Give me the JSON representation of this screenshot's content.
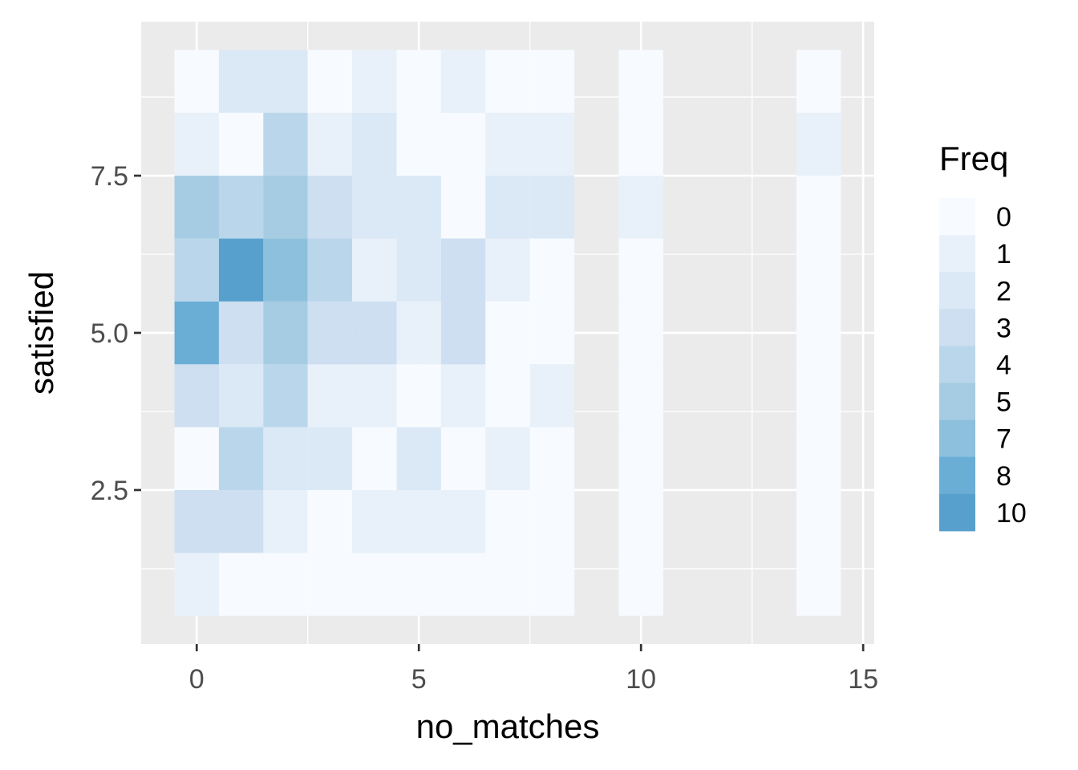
{
  "chart_data": {
    "type": "heatmap",
    "title": "",
    "xlabel": "no_matches",
    "ylabel": "satisfied",
    "x_ticks": [
      0,
      5,
      10,
      15
    ],
    "x_tick_labels": [
      "0",
      "5",
      "10",
      "15"
    ],
    "y_ticks": [
      2.5,
      5.0,
      7.5
    ],
    "y_tick_labels": [
      "2.5",
      "5.0",
      "7.5"
    ],
    "xlim": [
      -1.25,
      15.25
    ],
    "ylim": [
      0.05,
      9.95
    ],
    "grid": true,
    "panel_background": "#ebebeb",
    "legend": {
      "title": "Freq",
      "position": "right",
      "levels": [
        "0",
        "1",
        "2",
        "3",
        "4",
        "5",
        "7",
        "8",
        "10"
      ],
      "colors": [
        "#f7fbff",
        "#e8f1fa",
        "#dbe9f6",
        "#cddff1",
        "#bad6eb",
        "#a5cce2",
        "#8dc0dd",
        "#6aaed6",
        "#57a0ce"
      ]
    },
    "cells": [
      {
        "x": 0,
        "y": 1,
        "freq": 1
      },
      {
        "x": 1,
        "y": 1,
        "freq": 0
      },
      {
        "x": 2,
        "y": 1,
        "freq": 0
      },
      {
        "x": 3,
        "y": 1,
        "freq": 0
      },
      {
        "x": 4,
        "y": 1,
        "freq": 0
      },
      {
        "x": 5,
        "y": 1,
        "freq": 0
      },
      {
        "x": 6,
        "y": 1,
        "freq": 0
      },
      {
        "x": 7,
        "y": 1,
        "freq": 0
      },
      {
        "x": 8,
        "y": 1,
        "freq": 0
      },
      {
        "x": 10,
        "y": 1,
        "freq": 0
      },
      {
        "x": 14,
        "y": 1,
        "freq": 0
      },
      {
        "x": 0,
        "y": 2,
        "freq": 3
      },
      {
        "x": 1,
        "y": 2,
        "freq": 3
      },
      {
        "x": 2,
        "y": 2,
        "freq": 1
      },
      {
        "x": 3,
        "y": 2,
        "freq": 0
      },
      {
        "x": 4,
        "y": 2,
        "freq": 1
      },
      {
        "x": 5,
        "y": 2,
        "freq": 1
      },
      {
        "x": 6,
        "y": 2,
        "freq": 1
      },
      {
        "x": 7,
        "y": 2,
        "freq": 0
      },
      {
        "x": 8,
        "y": 2,
        "freq": 0
      },
      {
        "x": 10,
        "y": 2,
        "freq": 0
      },
      {
        "x": 14,
        "y": 2,
        "freq": 0
      },
      {
        "x": 0,
        "y": 3,
        "freq": 0
      },
      {
        "x": 1,
        "y": 3,
        "freq": 4
      },
      {
        "x": 2,
        "y": 3,
        "freq": 2
      },
      {
        "x": 3,
        "y": 3,
        "freq": 2
      },
      {
        "x": 4,
        "y": 3,
        "freq": 0
      },
      {
        "x": 5,
        "y": 3,
        "freq": 2
      },
      {
        "x": 6,
        "y": 3,
        "freq": 0
      },
      {
        "x": 7,
        "y": 3,
        "freq": 1
      },
      {
        "x": 8,
        "y": 3,
        "freq": 0
      },
      {
        "x": 10,
        "y": 3,
        "freq": 0
      },
      {
        "x": 14,
        "y": 3,
        "freq": 0
      },
      {
        "x": 0,
        "y": 4,
        "freq": 3
      },
      {
        "x": 1,
        "y": 4,
        "freq": 2
      },
      {
        "x": 2,
        "y": 4,
        "freq": 4
      },
      {
        "x": 3,
        "y": 4,
        "freq": 1
      },
      {
        "x": 4,
        "y": 4,
        "freq": 1
      },
      {
        "x": 5,
        "y": 4,
        "freq": 0
      },
      {
        "x": 6,
        "y": 4,
        "freq": 1
      },
      {
        "x": 7,
        "y": 4,
        "freq": 0
      },
      {
        "x": 8,
        "y": 4,
        "freq": 1
      },
      {
        "x": 10,
        "y": 4,
        "freq": 0
      },
      {
        "x": 14,
        "y": 4,
        "freq": 0
      },
      {
        "x": 0,
        "y": 5,
        "freq": 8
      },
      {
        "x": 1,
        "y": 5,
        "freq": 3
      },
      {
        "x": 2,
        "y": 5,
        "freq": 5
      },
      {
        "x": 3,
        "y": 5,
        "freq": 3
      },
      {
        "x": 4,
        "y": 5,
        "freq": 3
      },
      {
        "x": 5,
        "y": 5,
        "freq": 1
      },
      {
        "x": 6,
        "y": 5,
        "freq": 3
      },
      {
        "x": 7,
        "y": 5,
        "freq": 0
      },
      {
        "x": 8,
        "y": 5,
        "freq": 0
      },
      {
        "x": 10,
        "y": 5,
        "freq": 0
      },
      {
        "x": 14,
        "y": 5,
        "freq": 0
      },
      {
        "x": 0,
        "y": 6,
        "freq": 4
      },
      {
        "x": 1,
        "y": 6,
        "freq": 10
      },
      {
        "x": 2,
        "y": 6,
        "freq": 7
      },
      {
        "x": 3,
        "y": 6,
        "freq": 4
      },
      {
        "x": 4,
        "y": 6,
        "freq": 1
      },
      {
        "x": 5,
        "y": 6,
        "freq": 2
      },
      {
        "x": 6,
        "y": 6,
        "freq": 3
      },
      {
        "x": 7,
        "y": 6,
        "freq": 1
      },
      {
        "x": 8,
        "y": 6,
        "freq": 0
      },
      {
        "x": 10,
        "y": 6,
        "freq": 0
      },
      {
        "x": 14,
        "y": 6,
        "freq": 0
      },
      {
        "x": 0,
        "y": 7,
        "freq": 5
      },
      {
        "x": 1,
        "y": 7,
        "freq": 4
      },
      {
        "x": 2,
        "y": 7,
        "freq": 5
      },
      {
        "x": 3,
        "y": 7,
        "freq": 3
      },
      {
        "x": 4,
        "y": 7,
        "freq": 2
      },
      {
        "x": 5,
        "y": 7,
        "freq": 2
      },
      {
        "x": 6,
        "y": 7,
        "freq": 0
      },
      {
        "x": 7,
        "y": 7,
        "freq": 2
      },
      {
        "x": 8,
        "y": 7,
        "freq": 2
      },
      {
        "x": 10,
        "y": 7,
        "freq": 1
      },
      {
        "x": 14,
        "y": 7,
        "freq": 0
      },
      {
        "x": 0,
        "y": 8,
        "freq": 1
      },
      {
        "x": 1,
        "y": 8,
        "freq": 0
      },
      {
        "x": 2,
        "y": 8,
        "freq": 4
      },
      {
        "x": 3,
        "y": 8,
        "freq": 1
      },
      {
        "x": 4,
        "y": 8,
        "freq": 2
      },
      {
        "x": 5,
        "y": 8,
        "freq": 0
      },
      {
        "x": 6,
        "y": 8,
        "freq": 0
      },
      {
        "x": 7,
        "y": 8,
        "freq": 1
      },
      {
        "x": 8,
        "y": 8,
        "freq": 1
      },
      {
        "x": 10,
        "y": 8,
        "freq": 0
      },
      {
        "x": 14,
        "y": 8,
        "freq": 1
      },
      {
        "x": 0,
        "y": 9,
        "freq": 0
      },
      {
        "x": 1,
        "y": 9,
        "freq": 2
      },
      {
        "x": 2,
        "y": 9,
        "freq": 2
      },
      {
        "x": 3,
        "y": 9,
        "freq": 0
      },
      {
        "x": 4,
        "y": 9,
        "freq": 1
      },
      {
        "x": 5,
        "y": 9,
        "freq": 0
      },
      {
        "x": 6,
        "y": 9,
        "freq": 1
      },
      {
        "x": 7,
        "y": 9,
        "freq": 0
      },
      {
        "x": 8,
        "y": 9,
        "freq": 0
      },
      {
        "x": 10,
        "y": 9,
        "freq": 0
      },
      {
        "x": 14,
        "y": 9,
        "freq": 0
      }
    ]
  }
}
